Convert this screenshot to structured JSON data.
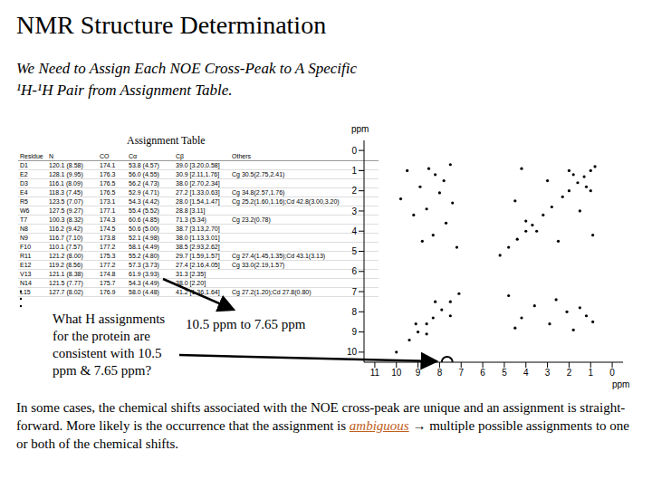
{
  "title": "NMR Structure Determination",
  "subtitle": [
    "We Need to Assign Each NOE Cross-Peak to A Specific",
    "¹H-¹H Pair from Assignment Table."
  ],
  "table_caption": "Assignment Table",
  "table": {
    "header": [
      "Residue",
      "N",
      "CO",
      "Cα",
      "Cβ",
      "Others"
    ],
    "rows": [
      [
        "D1",
        "120.1 (8.58)",
        "174.1",
        "53.8 (4.57)",
        "39.0 [3.20,0.58]",
        ""
      ],
      [
        "E2",
        "128.1 (9.95)",
        "176.3",
        "56.0 (4.55)",
        "30.9 [2.11,1.76]",
        "Cg 30.5(2.75,2.41)"
      ],
      [
        "D3",
        "116.1 (8.09)",
        "176.5",
        "56.2 (4.73)",
        "38.0 [2.70,2.34]",
        ""
      ],
      [
        "E4",
        "118.3 (7.45)",
        "176.5",
        "52.9 (4.71)",
        "27.2 [1.33,0.63]",
        "Cg 34.8(2.57,1.76)"
      ],
      [
        "R5",
        "123.5 (7.07)",
        "173.1",
        "54.3 (4.42)",
        "28.0 [1.54,1.47]",
        "Cg 25.2(1.60,1.16);Cd 42.8(3.00,3.20)"
      ],
      [
        "W6",
        "127.5 (9.27)",
        "177.1",
        "55.4 (5.52)",
        "28.8 [3.11]",
        ""
      ],
      [
        "T7",
        "100.3 (8.32)",
        "174.3",
        "60.6 (4.85)",
        "71.3 (5.34)",
        "Cg 23.2(0.78)"
      ],
      [
        "N8",
        "116.2 (9.42)",
        "174.5",
        "50.6 (5.00)",
        "38.7 [3.13,2.70]",
        ""
      ],
      [
        "N9",
        "116.7 (7.10)",
        "173.8",
        "52.1 (4.98)",
        "38.0 [1.13,3.01]",
        ""
      ],
      [
        "F10",
        "110.1 (7.57)",
        "177.2",
        "58.1 (4.49)",
        "38.5 [2.93,2.62]",
        ""
      ],
      [
        "R11",
        "121.2 (8.00)",
        "175.3",
        "55.2 (4.80)",
        "29.7 [1.59,1.57]",
        "Cg 27.4(1.45,1.35);Cd 43.1(3.13)"
      ],
      [
        "E12",
        "119.2 (8.56)",
        "177.2",
        "57.3 (3.73)",
        "27.4 [2.16,4.05]",
        "Cg 33.0(2.19,1.57)"
      ],
      [
        "V13",
        "121.1 (8.38)",
        "174.8",
        "61.9 (3.93)",
        "31.3 [2.35]",
        ""
      ],
      [
        "N14",
        "121.5 (7.77)",
        "175.7",
        "54.3 (4.49)",
        "38.0 [2.20]",
        ""
      ],
      [
        "L15",
        "127.7 (8.02)",
        "176.9",
        "58.0 (4.48)",
        "41.2 [1.36,1.64]",
        "Cg 27.2(1.20);Cd 27.8(0.80)"
      ]
    ]
  },
  "question": [
    "What H assignments",
    "for the protein are",
    "consistent with 10.5",
    "ppm & 7.65 ppm?"
  ],
  "callout": "10.5 ppm to 7.65 ppm",
  "paragraph": {
    "before": "In some cases, the chemical shifts associated with the NOE cross-peak are unique and an assignment is straight-forward. More likely is the occurrence that the assignment is ",
    "emphasis": "ambiguous",
    "after": " → multiple possible assignments to one or both of the chemical shifts."
  },
  "chart_data": {
    "type": "scatter",
    "x_label": "ppm",
    "y_label": "ppm",
    "xlim": [
      -0.5,
      11.5
    ],
    "ylim": [
      -0.5,
      10.5
    ],
    "xticks": [
      11,
      10,
      9,
      8,
      7,
      6,
      5,
      4,
      3,
      2,
      1,
      0
    ],
    "yticks": [
      0,
      1,
      2,
      3,
      4,
      5,
      6,
      7,
      8,
      9,
      10
    ],
    "color": "#000000",
    "x": [
      0.8,
      1.0,
      1.3,
      1.6,
      2.0,
      2.3,
      2.8,
      3.2,
      3.7,
      4.0,
      4.4,
      4.8,
      5.2,
      7.1,
      7.5,
      7.9,
      8.3,
      8.6,
      9.0,
      9.4,
      10.0,
      8.5,
      8.2,
      7.8,
      8.9,
      8.0,
      7.4,
      8.6,
      9.2,
      7.7,
      8.3,
      8.8,
      7.2,
      9.5,
      9.8,
      7.5,
      1.0,
      2.0,
      1.5,
      3.0,
      0.9,
      4.2,
      2.5,
      4.5,
      1.2,
      1.8,
      3.5,
      4.0,
      0.9,
      1.2,
      1.5,
      2.1,
      2.9,
      3.6,
      4.2,
      4.5,
      4.8,
      1.8,
      2.6,
      7.5,
      8.2,
      8.6,
      9.1
    ],
    "y": [
      0.8,
      1.0,
      1.3,
      1.6,
      2.0,
      2.3,
      2.8,
      3.2,
      3.7,
      4.0,
      4.4,
      4.8,
      5.2,
      7.1,
      7.5,
      7.9,
      8.3,
      8.6,
      9.0,
      9.4,
      10.0,
      0.9,
      1.2,
      1.5,
      1.8,
      2.1,
      2.6,
      2.9,
      3.2,
      3.6,
      4.2,
      4.5,
      4.8,
      1.0,
      2.4,
      0.7,
      2.0,
      1.0,
      3.0,
      1.5,
      4.2,
      0.9,
      4.5,
      2.5,
      1.8,
      1.2,
      4.0,
      3.5,
      8.5,
      8.2,
      7.8,
      8.0,
      8.6,
      7.7,
      8.3,
      8.8,
      7.2,
      8.9,
      7.4,
      8.2,
      7.5,
      9.1,
      8.6
    ],
    "highlight": {
      "x": 7.65,
      "y": 10.5
    }
  }
}
